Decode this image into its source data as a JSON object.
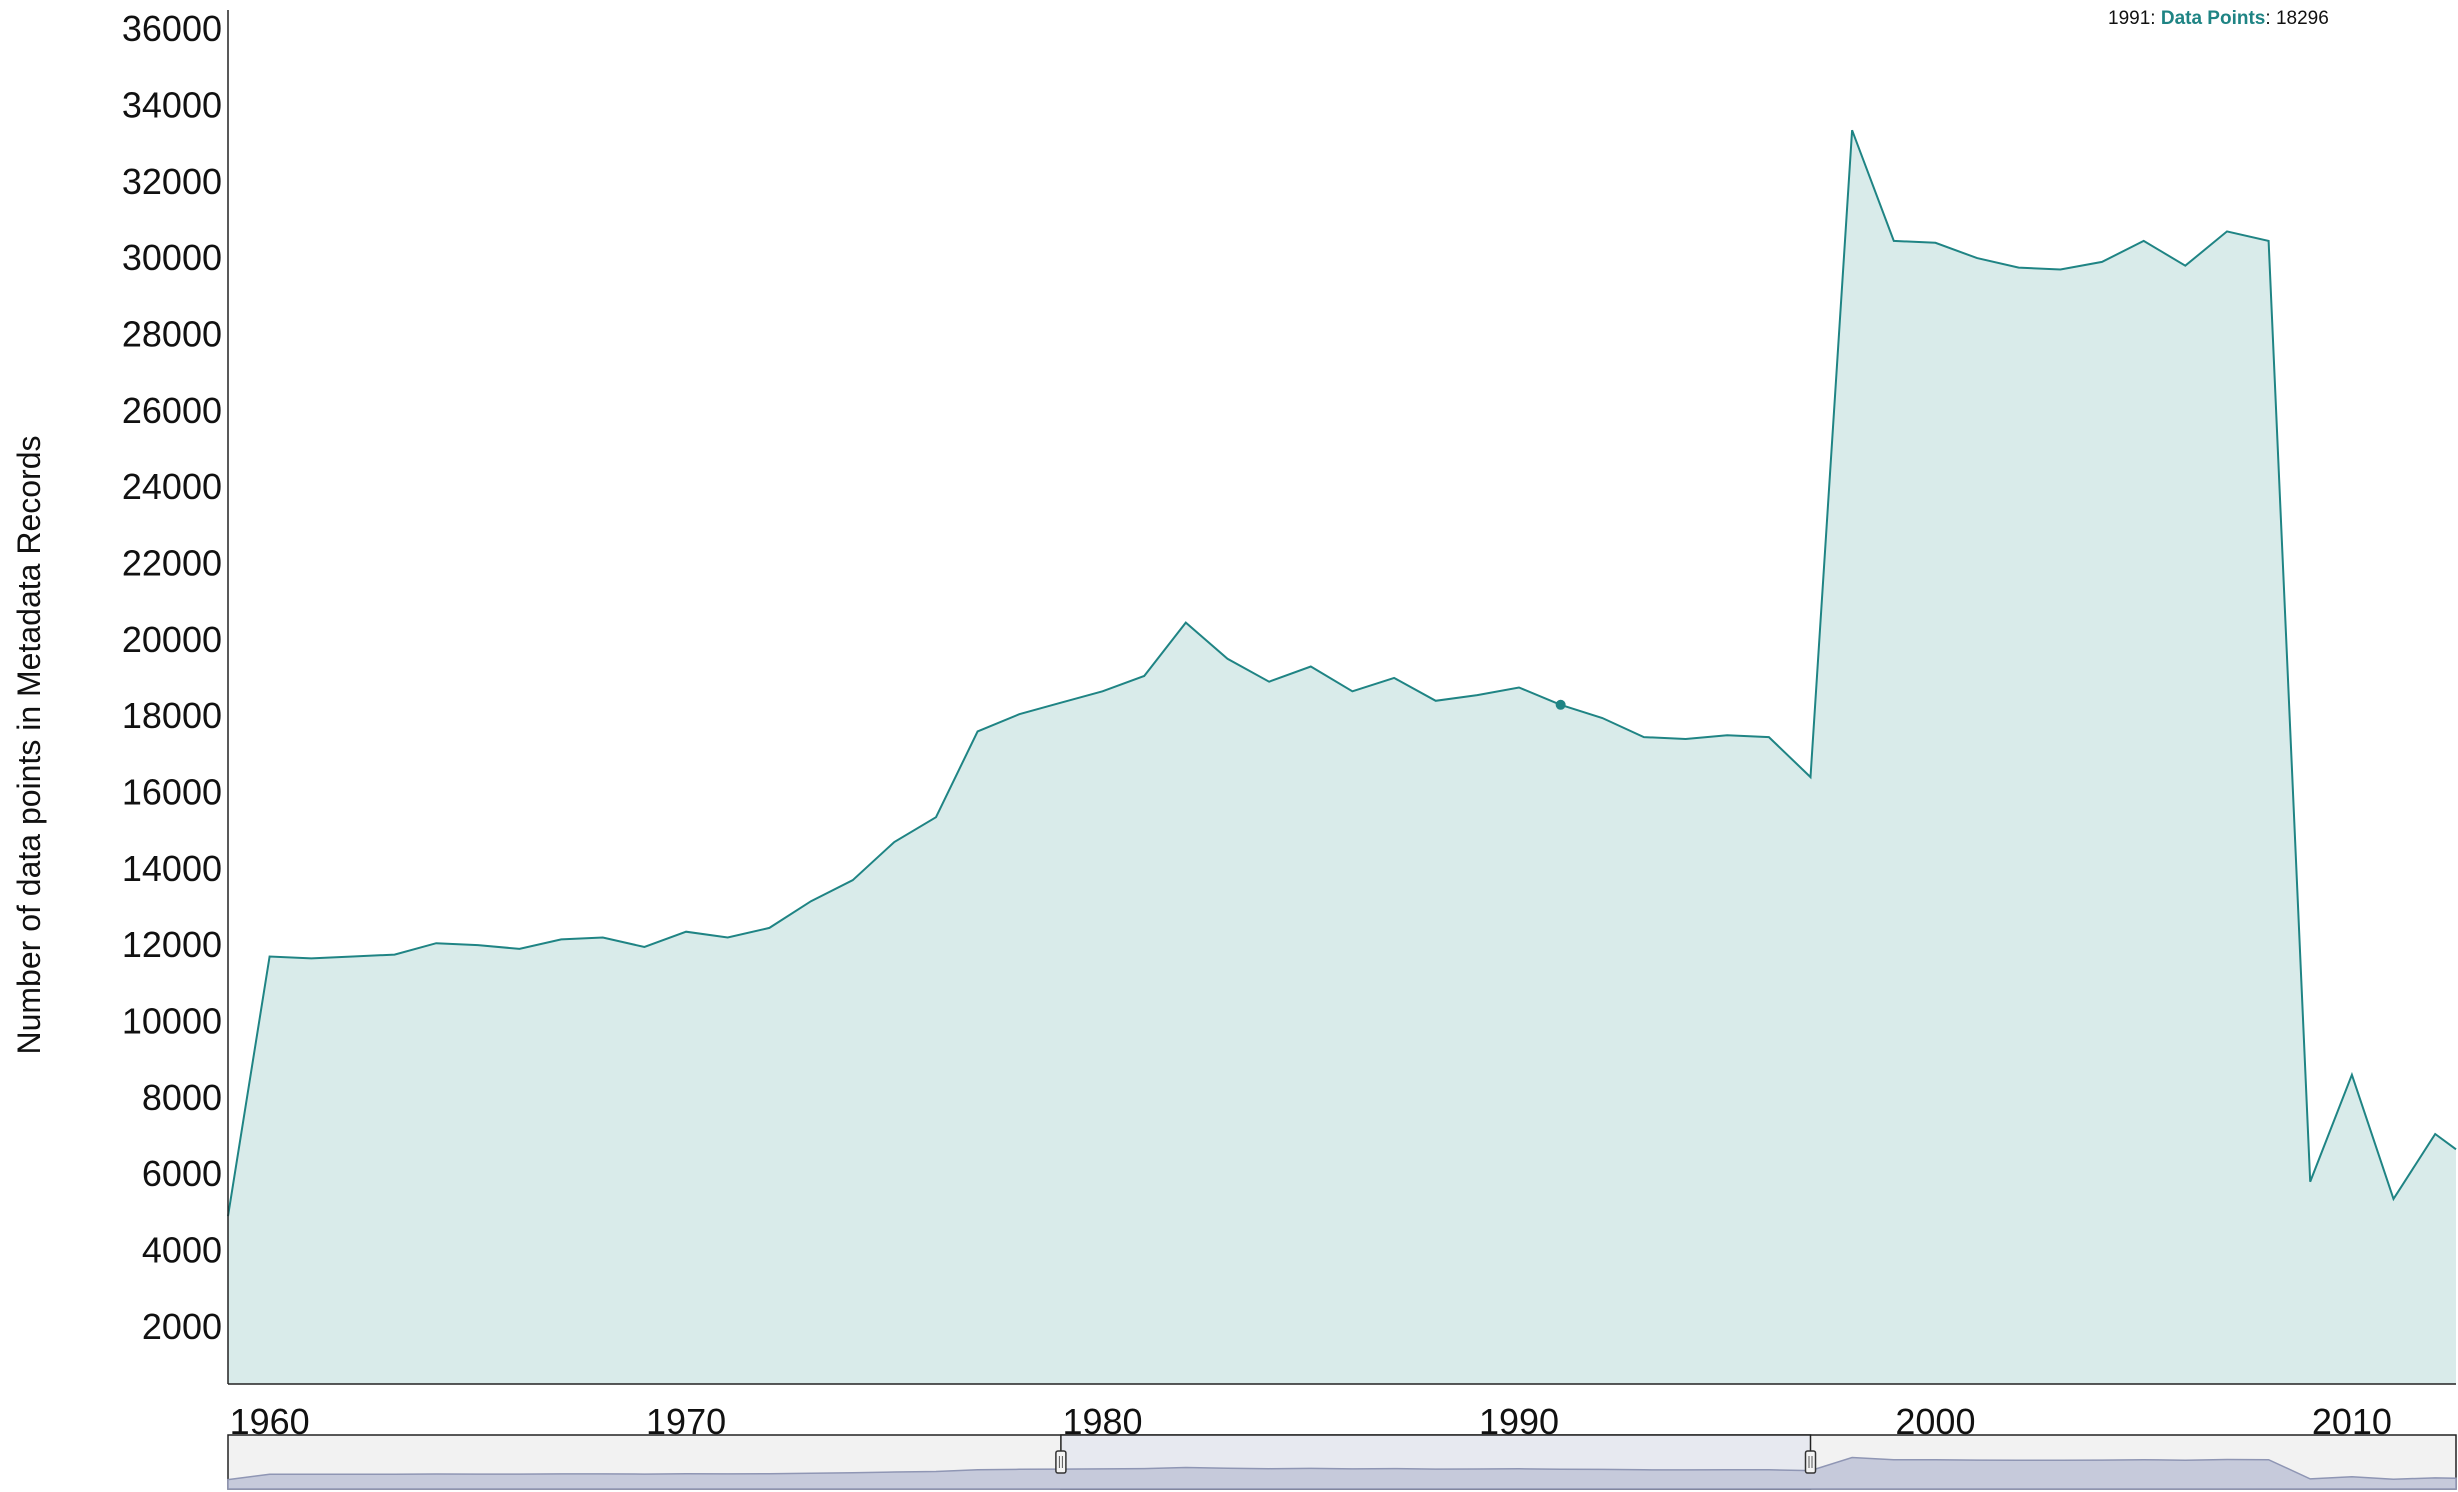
{
  "tooltip": {
    "year": "1991",
    "series_label": "Data Points",
    "value": "18296"
  },
  "colors": {
    "line": "#1f8484",
    "fill": "#d9ebea",
    "axis": "#222222",
    "navigator_fill": "#c6cadb",
    "navigator_line": "#8f96b4",
    "navigator_bg": "#f2f2f2",
    "navigator_selected_bg": "#e7e9f0"
  },
  "chart_data": {
    "type": "area",
    "title": "",
    "xlabel": "",
    "ylabel": "Number of data points in Metadata Records",
    "xlim": [
      1959,
      2012.5
    ],
    "ylim": [
      500,
      36500
    ],
    "x_ticks": [
      "1960",
      "1970",
      "1980",
      "1990",
      "2000",
      "2010"
    ],
    "y_ticks": [
      "2000",
      "4000",
      "6000",
      "8000",
      "10000",
      "12000",
      "14000",
      "16000",
      "18000",
      "20000",
      "22000",
      "24000",
      "26000",
      "28000",
      "30000",
      "32000",
      "34000",
      "36000"
    ],
    "grid": false,
    "legend": "none",
    "highlighted_point": {
      "x": 1991,
      "y": 18296
    },
    "navigator_range": [
      1979,
      1997
    ],
    "series": [
      {
        "name": "Data Points",
        "x": [
          1959,
          1960,
          1961,
          1962,
          1963,
          1964,
          1965,
          1966,
          1967,
          1968,
          1969,
          1970,
          1971,
          1972,
          1973,
          1974,
          1975,
          1976,
          1977,
          1978,
          1979,
          1980,
          1981,
          1982,
          1983,
          1984,
          1985,
          1986,
          1987,
          1988,
          1989,
          1990,
          1991,
          1992,
          1993,
          1994,
          1995,
          1996,
          1997,
          1998,
          1999,
          2000,
          2001,
          2002,
          2003,
          2004,
          2005,
          2006,
          2007,
          2008,
          2009,
          2010,
          2011,
          2012,
          2012.5
        ],
        "values": [
          4900,
          11700,
          11650,
          11700,
          11750,
          12050,
          12000,
          11900,
          12150,
          12200,
          11950,
          12350,
          12200,
          12450,
          13150,
          13700,
          14700,
          15350,
          17600,
          18050,
          18350,
          18650,
          19050,
          20450,
          19500,
          18900,
          19300,
          18650,
          19000,
          18400,
          18550,
          18750,
          18296,
          17950,
          17450,
          17400,
          17500,
          17450,
          16400,
          33350,
          30450,
          30400,
          30000,
          29750,
          29700,
          29900,
          30450,
          29800,
          30700,
          30450,
          5800,
          8600,
          5350,
          7050,
          6650
        ]
      }
    ]
  }
}
